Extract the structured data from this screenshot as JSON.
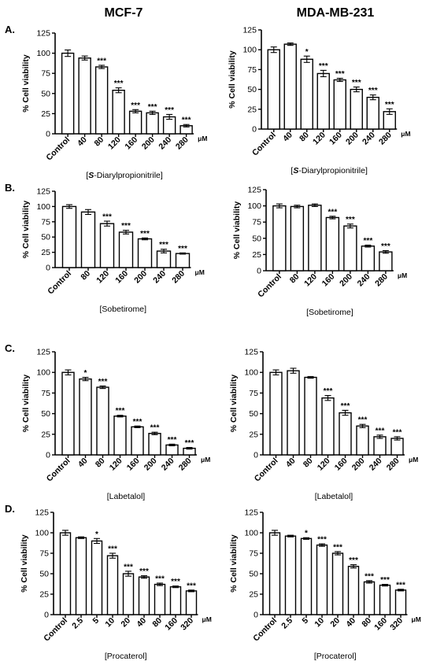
{
  "column_titles": [
    "MCF-7",
    "MDA-MB-231"
  ],
  "chart_data": [
    {
      "type": "bar",
      "panel": "A.",
      "column": "MCF-7",
      "categories": [
        "Control",
        "40",
        "80",
        "120",
        "160",
        "200",
        "240",
        "280"
      ],
      "values": [
        100,
        94,
        83,
        54,
        28,
        26,
        21,
        10
      ],
      "errors": [
        4,
        2.5,
        2,
        3,
        2,
        2,
        3,
        1.5
      ],
      "significance": [
        "",
        "",
        "***",
        "***",
        "***",
        "***",
        "***",
        "***"
      ],
      "unit": "μM",
      "ylabel": "% Cell viability",
      "xlabel_parts": [
        "[",
        "S",
        "-Diarylpropionitrile]"
      ],
      "ylim": [
        0,
        125
      ],
      "yticks": [
        0,
        25,
        50,
        75,
        100,
        125
      ]
    },
    {
      "type": "bar",
      "panel": "",
      "column": "MDA-MB-231",
      "categories": [
        "Control",
        "40",
        "80",
        "120",
        "160",
        "200",
        "240",
        "280"
      ],
      "values": [
        100,
        107,
        88,
        70,
        62,
        50,
        40,
        22
      ],
      "errors": [
        3.5,
        1.5,
        4,
        4,
        2,
        3,
        3,
        3.5
      ],
      "significance": [
        "",
        "",
        "*",
        "***",
        "***",
        "***",
        "***",
        "***"
      ],
      "unit": "μM",
      "ylabel": "% Cell viability",
      "xlabel_parts": [
        "[",
        "S",
        "-Diarylpropionitrile]"
      ],
      "ylim": [
        0,
        125
      ],
      "yticks": [
        0,
        25,
        50,
        75,
        100,
        125
      ]
    },
    {
      "type": "bar",
      "panel": "B.",
      "column": "MCF-7",
      "categories": [
        "Control",
        "80",
        "120",
        "160",
        "200",
        "240",
        "280"
      ],
      "values": [
        100,
        91,
        72,
        58,
        47,
        27,
        23
      ],
      "errors": [
        3,
        4,
        4,
        3,
        1.5,
        3,
        1
      ],
      "significance": [
        "",
        "",
        "***",
        "***",
        "***",
        "***",
        "***"
      ],
      "unit": "μM",
      "ylabel": "% Cell viability",
      "xlabel_parts": [
        "[Sobetirome]"
      ],
      "ylim": [
        0,
        125
      ],
      "yticks": [
        0,
        25,
        50,
        75,
        100,
        125
      ]
    },
    {
      "type": "bar",
      "panel": "",
      "column": "MDA-MB-231",
      "categories": [
        "Control",
        "80",
        "120",
        "160",
        "200",
        "240",
        "280"
      ],
      "values": [
        100,
        99,
        101,
        82,
        69,
        38,
        29
      ],
      "errors": [
        3,
        2,
        2,
        2,
        3,
        1.5,
        2
      ],
      "significance": [
        "",
        "",
        "",
        "***",
        "***",
        "***",
        "***"
      ],
      "unit": "μM",
      "ylabel": "% Cell viability",
      "xlabel_parts": [
        "[Sobetirome]"
      ],
      "ylim": [
        0,
        125
      ],
      "yticks": [
        0,
        25,
        50,
        75,
        100,
        125
      ]
    },
    {
      "type": "bar",
      "panel": "C.",
      "column": "MCF-7",
      "categories": [
        "Control",
        "40",
        "80",
        "120",
        "160",
        "200",
        "240",
        "280"
      ],
      "values": [
        100,
        92,
        82,
        47,
        34,
        26,
        12,
        8
      ],
      "errors": [
        3,
        2,
        1.5,
        1,
        1,
        1.5,
        1,
        1
      ],
      "significance": [
        "",
        "*",
        "***",
        "***",
        "***",
        "***",
        "***",
        "***"
      ],
      "unit": "μM",
      "ylabel": "% Cell viability",
      "xlabel_parts": [
        "[Labetalol]"
      ],
      "ylim": [
        0,
        125
      ],
      "yticks": [
        0,
        25,
        50,
        75,
        100,
        125
      ]
    },
    {
      "type": "bar",
      "panel": "",
      "column": "MDA-MB-231",
      "categories": [
        "Control",
        "40",
        "80",
        "120",
        "160",
        "200",
        "240",
        "280"
      ],
      "values": [
        100,
        102,
        94,
        69,
        51,
        35,
        22,
        20
      ],
      "errors": [
        3,
        3,
        1,
        3,
        3,
        2,
        2,
        2
      ],
      "significance": [
        "",
        "",
        "",
        "***",
        "***",
        "***",
        "***",
        "***"
      ],
      "unit": "μM",
      "ylabel": "% Cell viability",
      "xlabel_parts": [
        "[Labetalol]"
      ],
      "ylim": [
        0,
        125
      ],
      "yticks": [
        0,
        25,
        50,
        75,
        100,
        125
      ]
    },
    {
      "type": "bar",
      "panel": "D.",
      "column": "MCF-7",
      "categories": [
        "Control",
        "2.5",
        "5",
        "10",
        "20",
        "40",
        "80",
        "160",
        "320"
      ],
      "values": [
        100,
        94,
        90,
        72,
        50,
        46,
        37,
        34,
        29
      ],
      "errors": [
        3,
        1,
        3,
        3,
        3,
        1.5,
        1.5,
        1,
        1
      ],
      "significance": [
        "",
        "",
        "*",
        "***",
        "***",
        "***",
        "***",
        "***",
        "***"
      ],
      "unit": "μM",
      "ylabel": "% Cell viability",
      "xlabel_parts": [
        "[Procaterol]"
      ],
      "ylim": [
        0,
        125
      ],
      "yticks": [
        0,
        25,
        50,
        75,
        100,
        125
      ]
    },
    {
      "type": "bar",
      "panel": "",
      "column": "MDA-MB-231",
      "categories": [
        "Control",
        "2.5",
        "5",
        "10",
        "20",
        "40",
        "80",
        "160",
        "320"
      ],
      "values": [
        100,
        96,
        93,
        85,
        75,
        59,
        40,
        36,
        30
      ],
      "errors": [
        3,
        1,
        1,
        1.5,
        2,
        2,
        1.5,
        1,
        1
      ],
      "significance": [
        "",
        "",
        "*",
        "***",
        "***",
        "***",
        "***",
        "***",
        "***"
      ],
      "unit": "μM",
      "ylabel": "% Cell viability",
      "xlabel_parts": [
        "[Procaterol]"
      ],
      "ylim": [
        0,
        125
      ],
      "yticks": [
        0,
        25,
        50,
        75,
        100,
        125
      ]
    }
  ]
}
